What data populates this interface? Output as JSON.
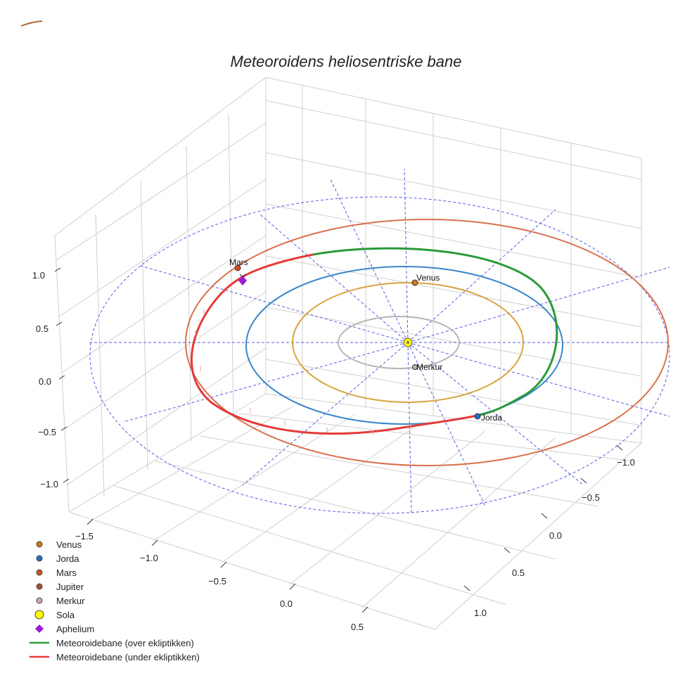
{
  "chart_data": {
    "type": "scatter",
    "projection": "3d",
    "title": "Meteoroidens heliosentriske bane",
    "axes": {
      "x": {
        "range": [
          -1.5,
          1.0
        ],
        "ticks": [
          "−1.0",
          "−0.5",
          "0.0",
          "0.5",
          "1.0"
        ]
      },
      "y": {
        "range": [
          -1.6,
          0.7
        ],
        "ticks": [
          "−1.5",
          "−1.0",
          "−0.5",
          "0.0",
          "0.5"
        ]
      },
      "z": {
        "range": [
          -1.2,
          1.2
        ],
        "ticks": [
          "1.0",
          "0.5",
          "0.0",
          "−0.5",
          "−1.0"
        ]
      }
    },
    "grid": true,
    "legend_position": "bottom-left",
    "orbits": [
      {
        "name": "Merkur",
        "radius_au": 0.39,
        "color": "#b8b4b4"
      },
      {
        "name": "Venus",
        "radius_au": 0.72,
        "color": "#d9a441"
      },
      {
        "name": "Jorda",
        "radius_au": 1.0,
        "color": "#3a86c8"
      },
      {
        "name": "Mars",
        "radius_au": 1.52,
        "color": "#d9704d"
      }
    ],
    "planets": [
      {
        "name": "Venus",
        "label": "Venus",
        "color": "#d17a18"
      },
      {
        "name": "Jorda",
        "label": "Jorda",
        "color": "#1f6fbf"
      },
      {
        "name": "Mars",
        "label": "Mars",
        "color": "#d24d25"
      },
      {
        "name": "Merkur",
        "label": "Merkur",
        "color": "#c8aea6"
      }
    ],
    "meteoroid": {
      "above_color": "#2a9a3a",
      "below_color": "#e53a3a",
      "aphelion_color": "#9a1bd6"
    },
    "legend": [
      {
        "label": "Venus",
        "marker": "circle",
        "color": "#d17a18"
      },
      {
        "label": "Jorda",
        "marker": "circle",
        "color": "#1f6fbf"
      },
      {
        "label": "Mars",
        "marker": "circle",
        "color": "#d24d25"
      },
      {
        "label": "Jupiter",
        "marker": "circle",
        "color": "#a0522d"
      },
      {
        "label": "Merkur",
        "marker": "circle",
        "color": "#c8aea6"
      },
      {
        "label": "Sola",
        "marker": "circle-large",
        "color": "#ffff00"
      },
      {
        "label": "Aphelium",
        "marker": "diamond",
        "color": "#9a1bd6"
      },
      {
        "label": "Meteoroidebane (over ekliptikken)",
        "marker": "line",
        "color": "#2a9a3a"
      },
      {
        "label": "Meteoroidebane (under ekliptikken)",
        "marker": "line",
        "color": "#e53a3a"
      }
    ]
  }
}
